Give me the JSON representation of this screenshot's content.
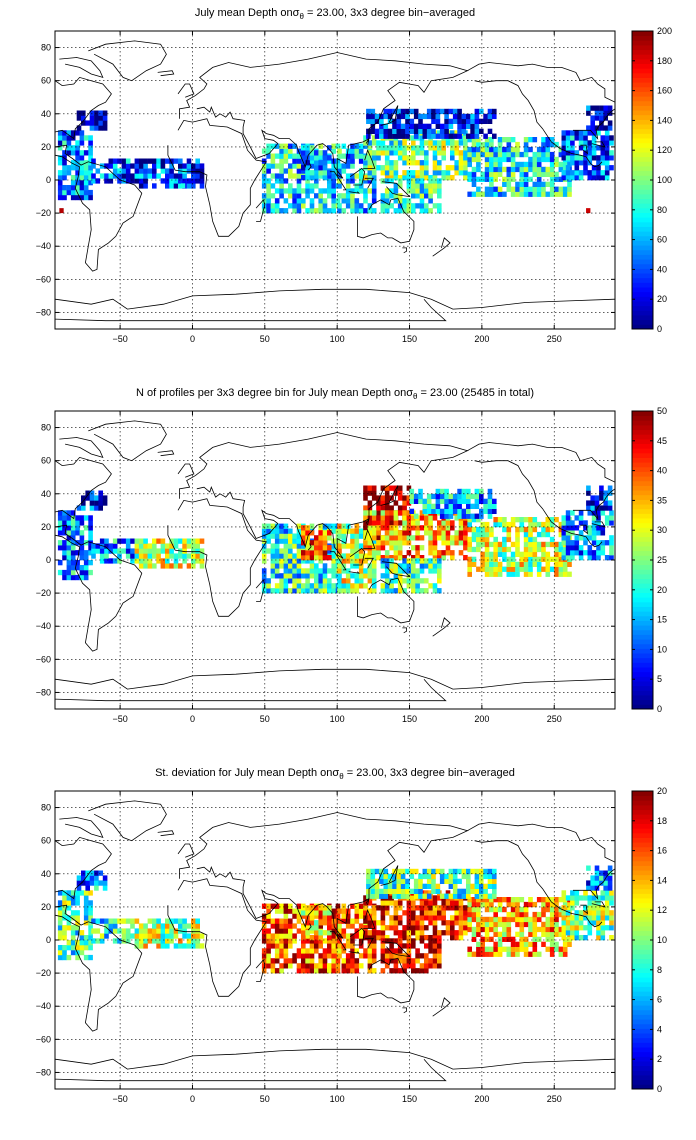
{
  "figure": {
    "background": "#ffffff",
    "land_outline_color": "#000000",
    "grid_color": "#000000"
  },
  "colormap": "jet",
  "chart_data": [
    {
      "type": "heatmap",
      "title": "July mean Depth on σθ = 23.00, 3x3 degree bin−averaged",
      "title_parts": {
        "pre": "July mean Depth onσ",
        "sub": "θ",
        "post": " = 23.00, 3x3 degree bin−averaged"
      },
      "xlim": [
        -95,
        292
      ],
      "ylim": [
        -90,
        90
      ],
      "xticks": [
        -50,
        0,
        50,
        100,
        150,
        200,
        250
      ],
      "yticks": [
        -80,
        -60,
        -40,
        -20,
        0,
        20,
        40,
        60,
        80
      ],
      "xtick_labels": [
        "−50",
        "0",
        "50",
        "100",
        "150",
        "200",
        "250"
      ],
      "ytick_labels": [
        "−80",
        "−60",
        "−40",
        "−20",
        "0",
        "20",
        "40",
        "60",
        "80"
      ],
      "grid": true,
      "colorbar": {
        "min": 0,
        "max": 200,
        "ticks": [
          0,
          20,
          40,
          60,
          80,
          100,
          120,
          140,
          160,
          180,
          200
        ]
      },
      "regions": [
        {
          "x": [
            -93,
            -70
          ],
          "y": [
            -12,
            30
          ],
          "value": 50
        },
        {
          "x": [
            -70,
            -40
          ],
          "y": [
            -2,
            12
          ],
          "value": 40
        },
        {
          "x": [
            -40,
            8
          ],
          "y": [
            -5,
            12
          ],
          "value": 35
        },
        {
          "x": [
            -80,
            -60
          ],
          "y": [
            30,
            42
          ],
          "value": 15
        },
        {
          "x": [
            48,
            100
          ],
          "y": [
            -20,
            20
          ],
          "value": 70
        },
        {
          "x": [
            75,
            95
          ],
          "y": [
            0,
            20
          ],
          "value": 55
        },
        {
          "x": [
            100,
            125
          ],
          "y": [
            -20,
            22
          ],
          "value": 70
        },
        {
          "x": [
            118,
            190
          ],
          "y": [
            0,
            30
          ],
          "value": 95
        },
        {
          "x": [
            190,
            260
          ],
          "y": [
            -10,
            25
          ],
          "value": 75
        },
        {
          "x": [
            120,
            210
          ],
          "y": [
            25,
            43
          ],
          "value": 25
        },
        {
          "x": [
            130,
            170
          ],
          "y": [
            -20,
            0
          ],
          "value": 80
        },
        {
          "x": [
            255,
            290
          ],
          "y": [
            0,
            30
          ],
          "value": 45
        },
        {
          "x": [
            272,
            290
          ],
          "y": [
            30,
            45
          ],
          "value": 25
        }
      ],
      "points": [
        {
          "x": -92,
          "y": -20,
          "value": 190
        },
        {
          "x": 272,
          "y": -20,
          "value": 185
        },
        {
          "x": -8,
          "y": -5,
          "value": 80
        }
      ]
    },
    {
      "type": "heatmap",
      "title": "N of profiles per 3x3 degree bin for July mean Depth on σθ = 23.00 (25485 in total)",
      "title_parts": {
        "pre": "N of profiles per 3x3 degree bin for July mean Depth onσ",
        "sub": "θ",
        "post": " = 23.00 (25485 in total)"
      },
      "xlim": [
        -95,
        292
      ],
      "ylim": [
        -90,
        90
      ],
      "xticks": [
        -50,
        0,
        50,
        100,
        150,
        200,
        250
      ],
      "yticks": [
        -80,
        -60,
        -40,
        -20,
        0,
        20,
        40,
        60,
        80
      ],
      "xtick_labels": [
        "−50",
        "0",
        "50",
        "100",
        "150",
        "200",
        "250"
      ],
      "ytick_labels": [
        "−80",
        "−60",
        "−40",
        "−20",
        "0",
        "20",
        "40",
        "60",
        "80"
      ],
      "grid": true,
      "colorbar": {
        "min": 0,
        "max": 50,
        "ticks": [
          0,
          5,
          10,
          15,
          20,
          25,
          30,
          35,
          40,
          45,
          50
        ]
      },
      "regions": [
        {
          "x": [
            -93,
            -70
          ],
          "y": [
            -12,
            30
          ],
          "value": 14
        },
        {
          "x": [
            -70,
            -40
          ],
          "y": [
            -2,
            12
          ],
          "value": 14
        },
        {
          "x": [
            -40,
            8
          ],
          "y": [
            -5,
            12
          ],
          "value": 28
        },
        {
          "x": [
            -80,
            -60
          ],
          "y": [
            30,
            42
          ],
          "value": 6
        },
        {
          "x": [
            48,
            100
          ],
          "y": [
            -20,
            20
          ],
          "value": 20
        },
        {
          "x": [
            75,
            95
          ],
          "y": [
            0,
            20
          ],
          "value": 38
        },
        {
          "x": [
            100,
            125
          ],
          "y": [
            -20,
            22
          ],
          "value": 28
        },
        {
          "x": [
            118,
            150
          ],
          "y": [
            12,
            43
          ],
          "value": 50
        },
        {
          "x": [
            118,
            190
          ],
          "y": [
            0,
            30
          ],
          "value": 36
        },
        {
          "x": [
            190,
            260
          ],
          "y": [
            -10,
            25
          ],
          "value": 28
        },
        {
          "x": [
            150,
            210
          ],
          "y": [
            25,
            43
          ],
          "value": 15
        },
        {
          "x": [
            130,
            170
          ],
          "y": [
            -20,
            0
          ],
          "value": 22
        },
        {
          "x": [
            255,
            290
          ],
          "y": [
            0,
            30
          ],
          "value": 14
        },
        {
          "x": [
            272,
            290
          ],
          "y": [
            30,
            45
          ],
          "value": 6
        }
      ],
      "points": []
    },
    {
      "type": "heatmap",
      "title": "St. deviation for July mean Depth on σθ = 23.00, 3x3 degree bin−averaged",
      "title_parts": {
        "pre": "St. deviation for July mean Depth onσ",
        "sub": "θ",
        "post": " = 23.00, 3x3 degree bin−averaged"
      },
      "xlim": [
        -95,
        292
      ],
      "ylim": [
        -90,
        90
      ],
      "xticks": [
        -50,
        0,
        50,
        100,
        150,
        200,
        250
      ],
      "yticks": [
        -80,
        -60,
        -40,
        -20,
        0,
        20,
        40,
        60,
        80
      ],
      "xtick_labels": [
        "−50",
        "0",
        "50",
        "100",
        "150",
        "200",
        "250"
      ],
      "ytick_labels": [
        "−80",
        "−60",
        "−40",
        "−20",
        "0",
        "20",
        "40",
        "60",
        "80"
      ],
      "grid": true,
      "colorbar": {
        "min": 0,
        "max": 20,
        "ticks": [
          0,
          2,
          4,
          6,
          8,
          10,
          12,
          14,
          16,
          18,
          20
        ]
      },
      "regions": [
        {
          "x": [
            -93,
            -70
          ],
          "y": [
            -12,
            30
          ],
          "value": 9
        },
        {
          "x": [
            -70,
            -40
          ],
          "y": [
            -2,
            12
          ],
          "value": 8
        },
        {
          "x": [
            -40,
            8
          ],
          "y": [
            -5,
            12
          ],
          "value": 11
        },
        {
          "x": [
            -80,
            -60
          ],
          "y": [
            30,
            42
          ],
          "value": 5
        },
        {
          "x": [
            48,
            100
          ],
          "y": [
            -20,
            20
          ],
          "value": 16
        },
        {
          "x": [
            75,
            95
          ],
          "y": [
            0,
            20
          ],
          "value": 13
        },
        {
          "x": [
            100,
            125
          ],
          "y": [
            -20,
            22
          ],
          "value": 16
        },
        {
          "x": [
            118,
            190
          ],
          "y": [
            0,
            30
          ],
          "value": 17
        },
        {
          "x": [
            190,
            260
          ],
          "y": [
            -10,
            25
          ],
          "value": 14
        },
        {
          "x": [
            120,
            210
          ],
          "y": [
            25,
            43
          ],
          "value": 9
        },
        {
          "x": [
            130,
            170
          ],
          "y": [
            -20,
            0
          ],
          "value": 18
        },
        {
          "x": [
            255,
            290
          ],
          "y": [
            0,
            30
          ],
          "value": 10
        },
        {
          "x": [
            272,
            290
          ],
          "y": [
            30,
            45
          ],
          "value": 5
        }
      ],
      "points": []
    }
  ]
}
